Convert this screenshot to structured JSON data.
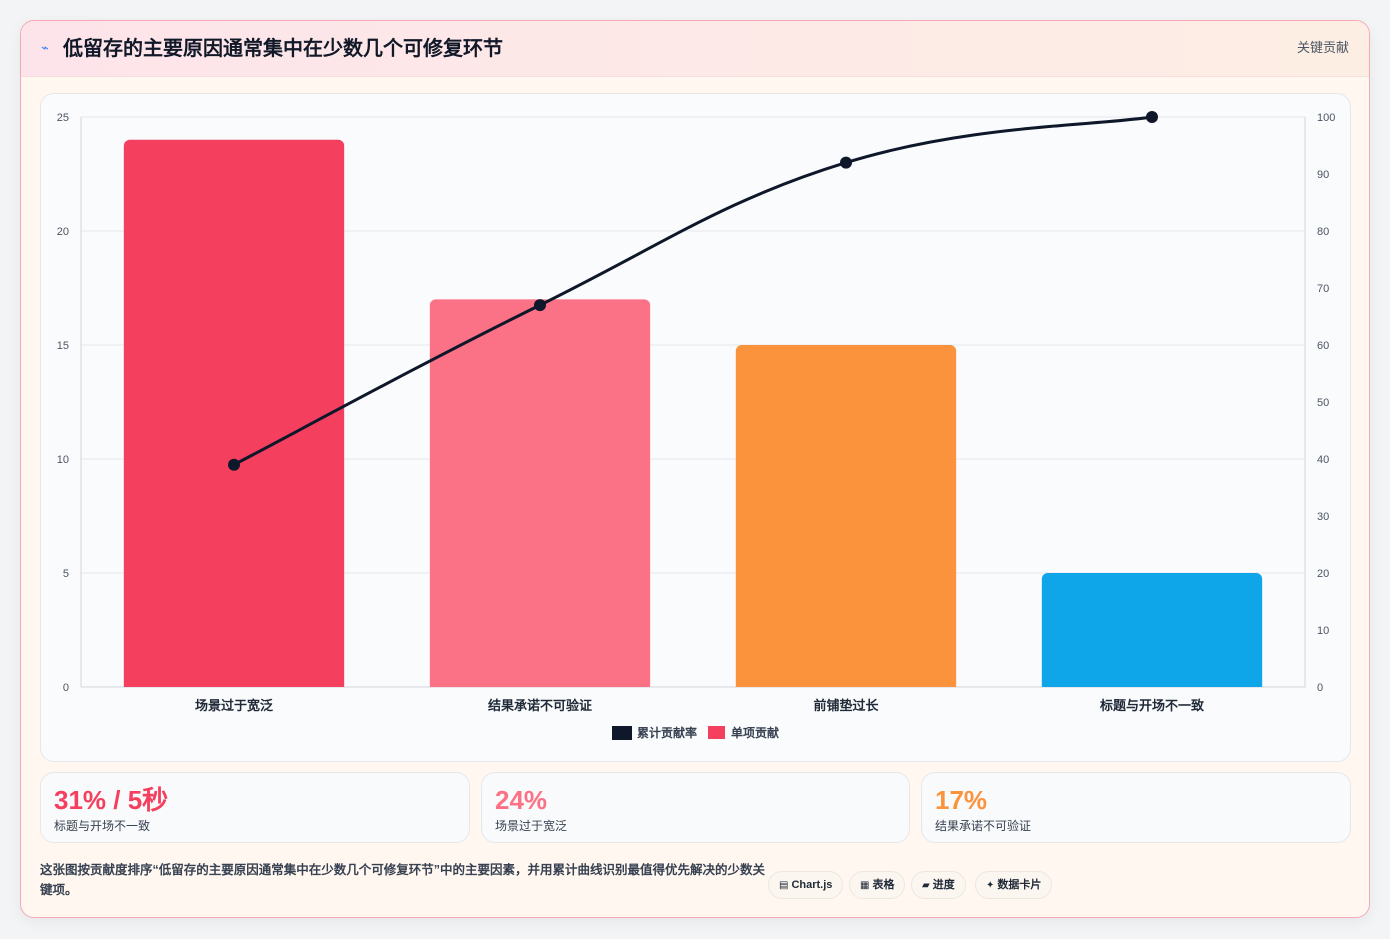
{
  "header": {
    "icon": "trend-icon",
    "title": "低留存的主要原因通常集中在少数几个可修复环节",
    "tag": "关键贡献"
  },
  "chart_data": {
    "type": "bar",
    "categories": [
      "场景过于宽泛",
      "结果承诺不可验证",
      "前铺垫过长",
      "标题与开场不一致"
    ],
    "series": [
      {
        "name": "单项贡献",
        "type": "bar",
        "axis": "left",
        "values": [
          24,
          17,
          15,
          5
        ],
        "colors": [
          "#f43f5e",
          "#fb7185",
          "#fb923c",
          "#0ea5e9"
        ]
      },
      {
        "name": "累计贡献率",
        "type": "line",
        "axis": "right",
        "values": [
          39,
          67,
          92,
          100
        ],
        "color": "#0f172a"
      }
    ],
    "y_left": {
      "min": 0,
      "max": 25,
      "ticks": [
        0,
        5,
        10,
        15,
        20,
        25
      ]
    },
    "y_right": {
      "min": 0,
      "max": 100,
      "ticks": [
        0,
        10,
        20,
        30,
        40,
        50,
        60,
        70,
        80,
        90,
        100
      ]
    },
    "legend": {
      "position": "bottom",
      "entries": [
        "累计贡献率",
        "单项贡献"
      ]
    },
    "grid": true
  },
  "kpis": [
    {
      "value": "31% / 5秒",
      "label": "标题与开场不一致",
      "color": "#f43f5e"
    },
    {
      "value": "24%",
      "label": "场景过于宽泛",
      "color": "#fb7185"
    },
    {
      "value": "17%",
      "label": "结果承诺不可验证",
      "color": "#fb923c"
    }
  ],
  "footnote": "这张图按贡献度排序“低留存的主要原因通常集中在少数几个可修复环节”中的主要因素，并用累计曲线识别最值得优先解决的少数关键项。",
  "chips": [
    {
      "icon": "chart-icon",
      "glyph": "▤",
      "label": "Chart.js"
    },
    {
      "icon": "table-icon",
      "glyph": "▦",
      "label": "表格"
    },
    {
      "icon": "progress-icon",
      "glyph": "▰",
      "label": "进度"
    },
    {
      "icon": "card-icon",
      "glyph": "✦",
      "label": "数据卡片"
    }
  ]
}
